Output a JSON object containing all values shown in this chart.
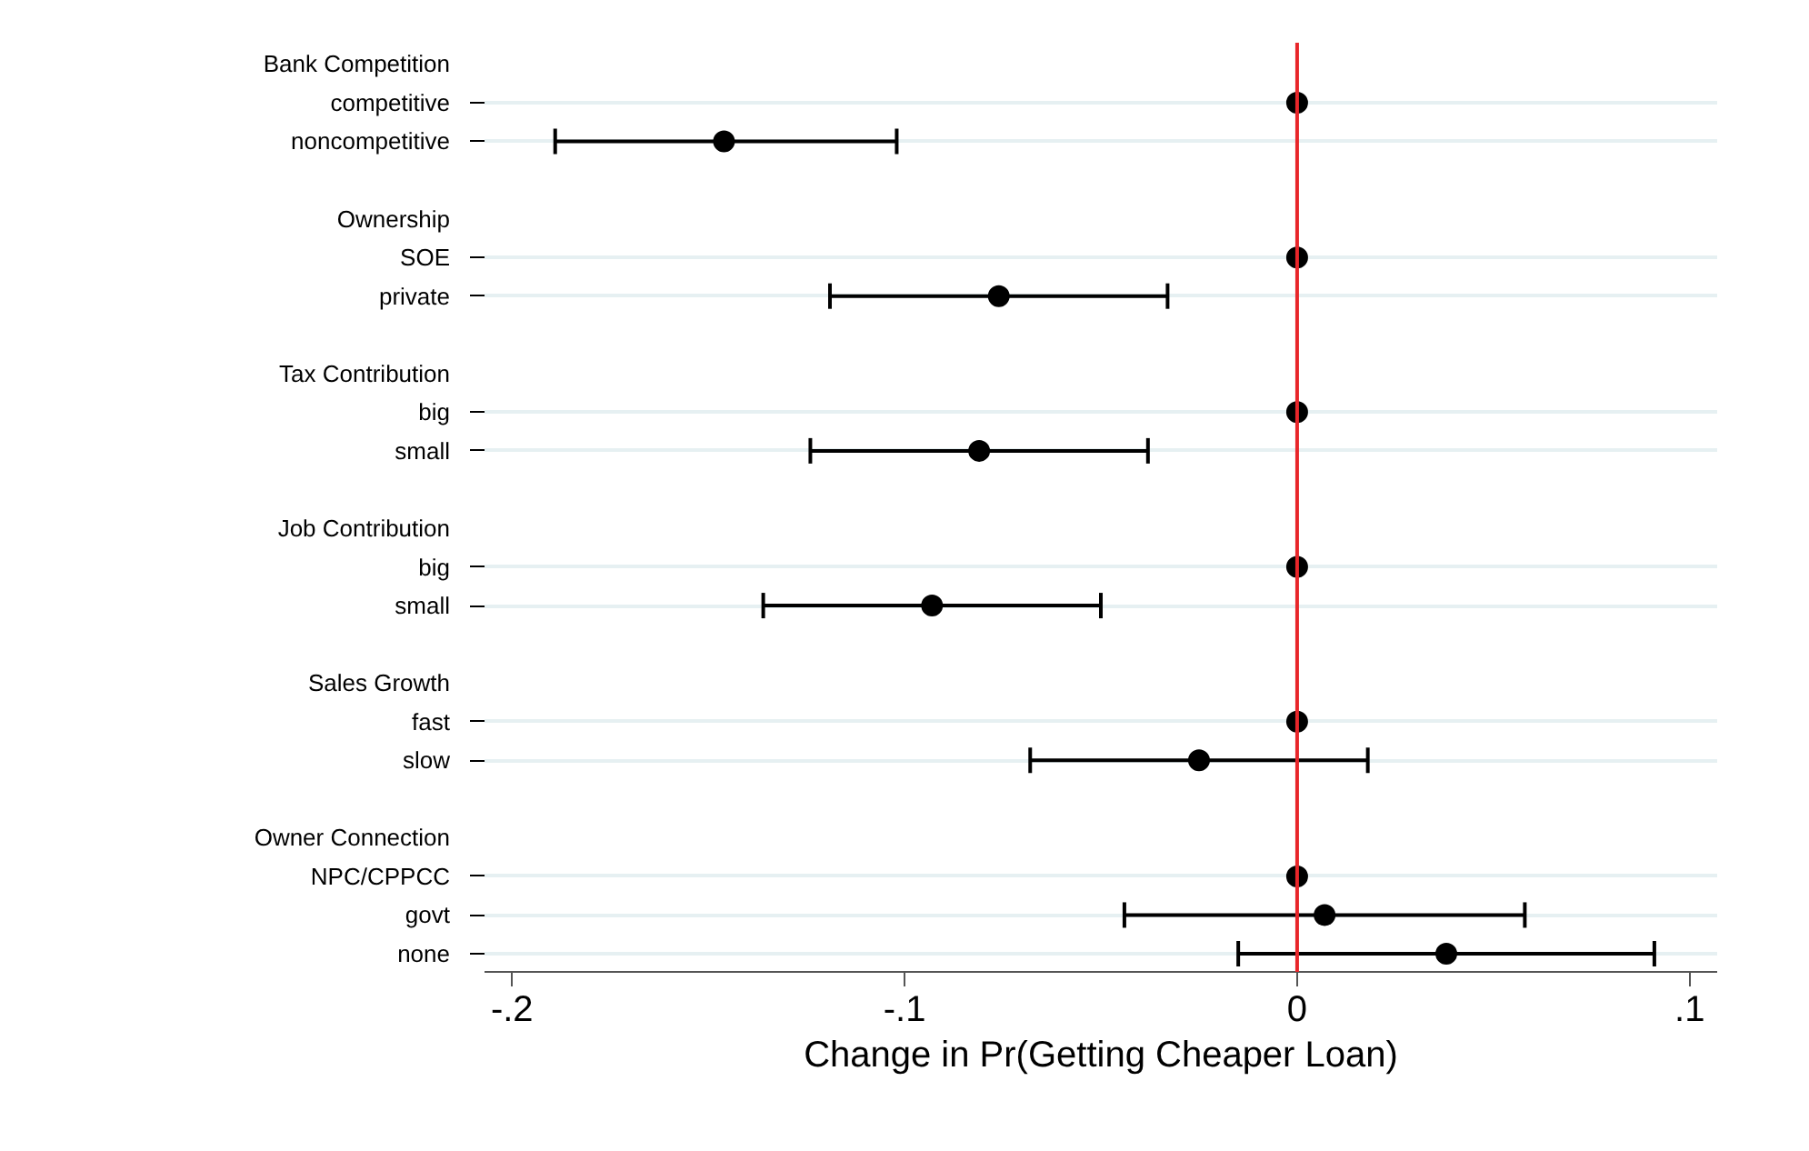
{
  "chart_data": {
    "type": "scatter",
    "orientation": "horizontal",
    "xlabel": "Change in Pr(Getting Cheaper Loan)",
    "categories": [
      "Bank Competition",
      "competitive",
      "noncompetitive",
      null,
      "Ownership",
      "SOE",
      "private",
      null,
      "Tax Contribution",
      "big",
      "small",
      null,
      "Job Contribution",
      "big",
      "small",
      null,
      "Sales Growth",
      "fast",
      "slow",
      null,
      "Owner Connection",
      "NPC/CPPCC",
      "govt",
      "none"
    ],
    "values": [
      null,
      0,
      -0.146,
      null,
      null,
      0,
      -0.076,
      null,
      null,
      0,
      -0.081,
      null,
      null,
      0,
      -0.093,
      null,
      null,
      0,
      -0.025,
      null,
      null,
      0,
      0.007,
      0.038
    ],
    "errors": [
      null,
      null,
      [
        -0.189,
        -0.102
      ],
      null,
      null,
      null,
      [
        -0.119,
        -0.033
      ],
      null,
      null,
      null,
      [
        -0.124,
        -0.038
      ],
      null,
      null,
      null,
      [
        -0.136,
        -0.05
      ],
      null,
      null,
      null,
      [
        -0.068,
        0.018
      ],
      null,
      null,
      null,
      [
        -0.044,
        0.058
      ],
      [
        -0.015,
        0.091
      ]
    ],
    "color": "#000000",
    "marker": "circle",
    "xlim": [
      -0.207,
      0.107
    ],
    "xticks": [
      {
        "value": -0.2,
        "label": "-.2"
      },
      {
        "value": -0.1,
        "label": "-.1"
      },
      0,
      {
        "value": 0.1,
        "label": ".1"
      }
    ],
    "ref_lines": [
      {
        "axis": "x",
        "value": 0,
        "color": "#e8262a"
      }
    ],
    "grid": "y",
    "legend": false
  }
}
